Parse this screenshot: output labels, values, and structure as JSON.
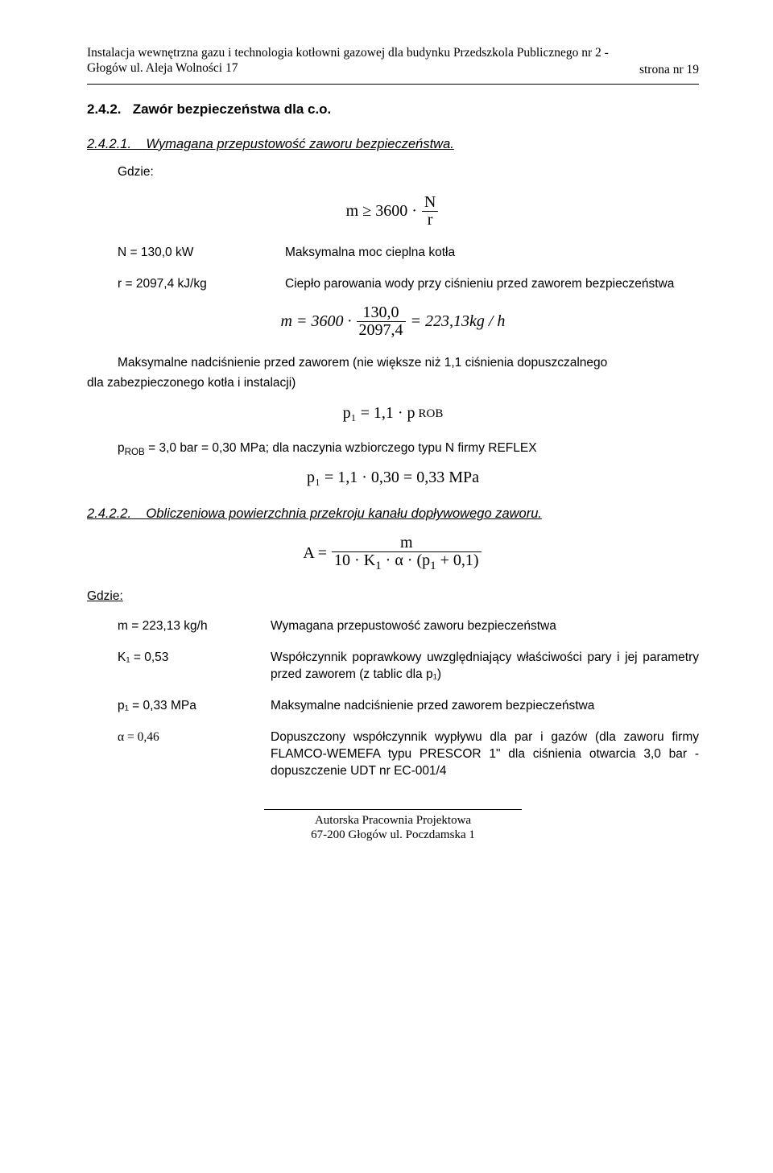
{
  "header": {
    "line1": "Instalacja wewnętrzna gazu i technologia kotłowni gazowej dla budynku Przedszkola Publicznego nr 2 -",
    "line2": "Głogów ul. Aleja Wolności 17",
    "page_label": "strona nr 19"
  },
  "sections": {
    "s242": {
      "num": "2.4.2.",
      "title": "Zawór bezpieczeństwa dla c.o."
    },
    "s2421": {
      "num": "2.4.2.1.",
      "title": "Wymagana przepustowość zaworu bezpieczeństwa."
    },
    "s2422": {
      "num": "2.4.2.2.",
      "title": "Obliczeniowa powierzchnia przekroju kanału dopływowego zaworu."
    }
  },
  "gdzie_label": "Gdzie:",
  "eq1": {
    "lhs": "m ≥ 3600 ·",
    "num": "N",
    "den": "r"
  },
  "defs1": {
    "N_lhs": "N = 130,0 kW",
    "N_rhs": "Maksymalna moc cieplna kotła",
    "r_lhs": "r = 2097,4 kJ/kg",
    "r_rhs": "Ciepło parowania wody przy ciśnieniu przed zaworem bezpieczeństwa"
  },
  "eq2": {
    "lhs": "m = 3600 ·",
    "num": "130,0",
    "den": "2097,4",
    "rhs": " = 223,13kg / h"
  },
  "para1a": "Maksymalne nadciśnienie przed zaworem (nie większe niż 1,1 ciśnienia dopuszczalnego",
  "para1b": "dla zabezpieczonego kotła i instalacji)",
  "eq3": {
    "full": "p₁ = 1,1 · p",
    "sub": "ROB"
  },
  "para2": {
    "lhs": "p",
    "sub": "ROB",
    "txt": " = 3,0 bar = 0,30 MPa;   dla naczynia wzbiorczego typu N firmy REFLEX"
  },
  "eq4": {
    "full": "p₁ = 1,1 · 0,30 = 0,33  MPa"
  },
  "eqA": {
    "lhs": "A =",
    "num": "m",
    "den_pre": "10 · K",
    "den_k_sub": "1",
    "den_mid": " · α · (p",
    "den_p_sub": "1",
    "den_post": " + 0,1)"
  },
  "defs2": {
    "m_lhs": "m = 223,13  kg/h",
    "m_rhs": "Wymagana przepustowość zaworu bezpieczeństwa",
    "K_lhs": "K₁ = 0,53",
    "K_rhs": "Współczynnik poprawkowy uwzględniający właściwości pary i jej parametry przed zaworem (z tablic dla p₁)",
    "p_lhs": "p₁ = 0,33 MPa",
    "p_rhs": "Maksymalne nadciśnienie przed zaworem bezpieczeństwa",
    "a_lhs": "α = 0,46",
    "a_rhs": "Dopuszczony współczynnik wypływu dla par i gazów (dla zaworu firmy FLAMCO-WEMEFA typu PRESCOR 1\" dla ciśnienia otwarcia 3,0 bar  - dopuszczenie UDT nr EC-001/4"
  },
  "footer": {
    "line1": "Autorska Pracownia Projektowa",
    "line2": "67-200 Głogów  ul. Poczdamska 1"
  }
}
